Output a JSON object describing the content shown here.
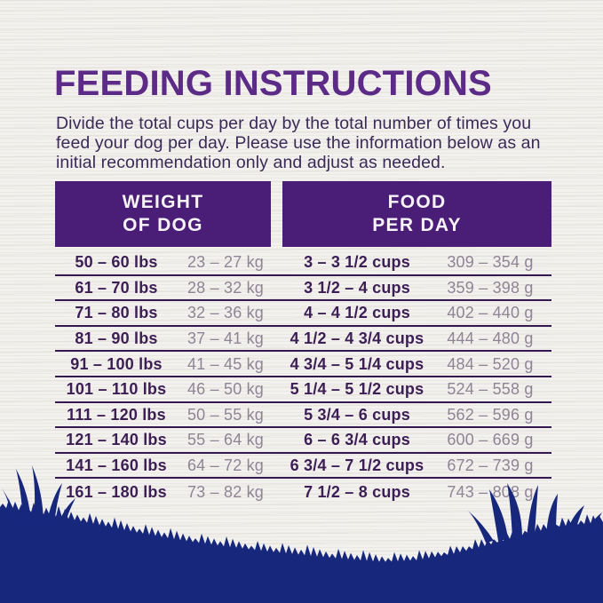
{
  "page": {
    "title": "FEEDING INSTRUCTIONS"
  },
  "intro": {
    "lines": [
      "Divide the total cups per day by the total number of times you",
      "feed your dog per day. Please use the information below as an",
      "initial recommendation only and adjust as needed."
    ]
  },
  "table": {
    "headers": {
      "weight": [
        "WEIGHT",
        "OF DOG"
      ],
      "food": [
        "FOOD",
        "PER DAY"
      ]
    },
    "rows": [
      {
        "lbs": "50 – 60 lbs",
        "kg": "23 – 27 kg",
        "cups": "3 – 3 1/2 cups",
        "g": "309 – 354 g"
      },
      {
        "lbs": "61 – 70 lbs",
        "kg": "28 – 32 kg",
        "cups": "3 1/2 – 4 cups",
        "g": "359 – 398 g"
      },
      {
        "lbs": "71 – 80 lbs",
        "kg": "32 – 36 kg",
        "cups": "4 – 4 1/2 cups",
        "g": "402 – 440 g"
      },
      {
        "lbs": "81 – 90 lbs",
        "kg": "37 – 41 kg",
        "cups": "4 1/2 – 4 3/4 cups",
        "g": "444 – 480 g"
      },
      {
        "lbs": "91 – 100 lbs",
        "kg": "41 – 45 kg",
        "cups": "4 3/4 – 5 1/4 cups",
        "g": "484 – 520 g"
      },
      {
        "lbs": "101 – 110 lbs",
        "kg": "46 – 50 kg",
        "cups": "5 1/4 – 5 1/2 cups",
        "g": "524 – 558 g"
      },
      {
        "lbs": "111 – 120 lbs",
        "kg": "50 – 55 kg",
        "cups": "5 3/4 – 6 cups",
        "g": "562 – 596 g"
      },
      {
        "lbs": "121 – 140 lbs",
        "kg": "55 – 64 kg",
        "cups": "6 – 6 3/4 cups",
        "g": "600 – 669 g"
      },
      {
        "lbs": "141 – 160 lbs",
        "kg": "64 – 72 kg",
        "cups": "6 3/4 – 7 1/2 cups",
        "g": "672 – 739 g"
      },
      {
        "lbs": "161 – 180 lbs",
        "kg": "73 – 82 kg",
        "cups": "7 1/2 – 8 cups",
        "g": "743 – 808 g"
      }
    ]
  },
  "colors": {
    "bg": "#f3f1ee",
    "title": "#5c2b87",
    "text": "#3a2a58",
    "header_bg": "#4a1e77",
    "header_text": "#f6f3f9",
    "dark": "#3c1e55",
    "muted": "#8e8496",
    "line": "#33194f",
    "grass": "#16277c"
  }
}
